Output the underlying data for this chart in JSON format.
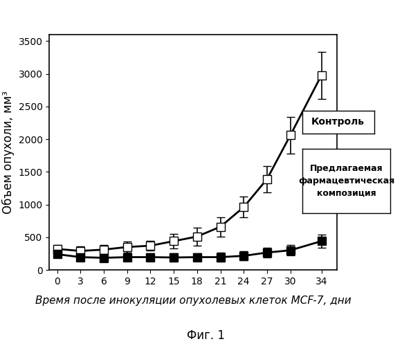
{
  "x": [
    0,
    3,
    6,
    9,
    12,
    15,
    18,
    21,
    24,
    27,
    30,
    34
  ],
  "control_y": [
    320,
    290,
    310,
    350,
    370,
    440,
    510,
    660,
    960,
    1390,
    2060,
    2980
  ],
  "control_err": [
    60,
    70,
    70,
    80,
    70,
    110,
    140,
    150,
    160,
    200,
    280,
    360
  ],
  "treatment_y": [
    240,
    195,
    185,
    195,
    195,
    190,
    195,
    195,
    215,
    265,
    300,
    440
  ],
  "treatment_err": [
    50,
    55,
    60,
    55,
    55,
    60,
    60,
    65,
    70,
    70,
    80,
    100
  ],
  "ylabel": "Объем опухоли, мм³",
  "xlabel": "Время после инокуляции опухолевых клеток MCF-7, дни",
  "label_control": "Контроль",
  "label_treatment": "Предлагаемая\nфармацевтическая\nкомпозиция",
  "fig_label": "Фиг. 1",
  "ylim": [
    0,
    3600
  ],
  "yticks": [
    0,
    500,
    1000,
    1500,
    2000,
    2500,
    3000,
    3500
  ],
  "xticks": [
    0,
    3,
    6,
    9,
    12,
    15,
    18,
    21,
    24,
    27,
    30,
    34
  ],
  "line_color": "#000000",
  "control_face": "#ffffff",
  "treatment_face": "#000000",
  "marker_size": 8,
  "linewidth": 2.0,
  "fontsize_labels": 11,
  "fontsize_ticks": 10,
  "fontsize_ylabel": 12,
  "fontsize_fig_label": 12
}
